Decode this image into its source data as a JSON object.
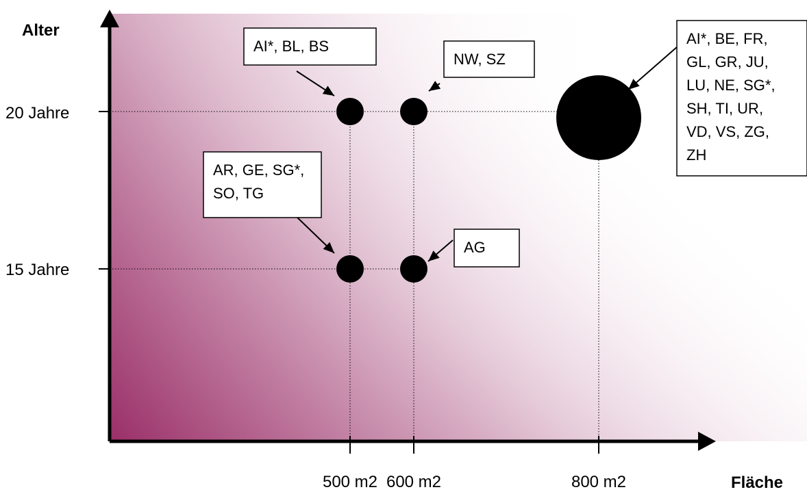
{
  "chart_data": {
    "type": "scatter",
    "title": "",
    "xlabel": "Fläche",
    "ylabel": "Alter",
    "x_ticks": [
      {
        "value": 500,
        "label": "500 m2"
      },
      {
        "value": 600,
        "label": "600 m2"
      },
      {
        "value": 800,
        "label": "800 m2"
      }
    ],
    "y_ticks": [
      {
        "value": 15,
        "label": "15 Jahre"
      },
      {
        "value": 20,
        "label": "20 Jahre"
      }
    ],
    "points": [
      {
        "x": 500,
        "y": 20,
        "size": "small",
        "labels": [
          "AI*, BL, BS"
        ]
      },
      {
        "x": 600,
        "y": 20,
        "size": "small",
        "labels": [
          "NW, SZ"
        ]
      },
      {
        "x": 800,
        "y": 20,
        "size": "large",
        "labels": [
          "AI*, BE, FR,",
          "GL, GR, JU,",
          "LU, NE, SG*,",
          "SH, TI, UR,",
          "VD, VS, ZG,",
          "ZH"
        ]
      },
      {
        "x": 500,
        "y": 15,
        "size": "small",
        "labels": [
          "AR, GE, SG*,",
          "SO, TG"
        ]
      },
      {
        "x": 600,
        "y": 15,
        "size": "small",
        "labels": [
          "AG"
        ]
      }
    ],
    "grid": false,
    "background_gradient": [
      "#9a2f68",
      "#ffffff"
    ]
  }
}
